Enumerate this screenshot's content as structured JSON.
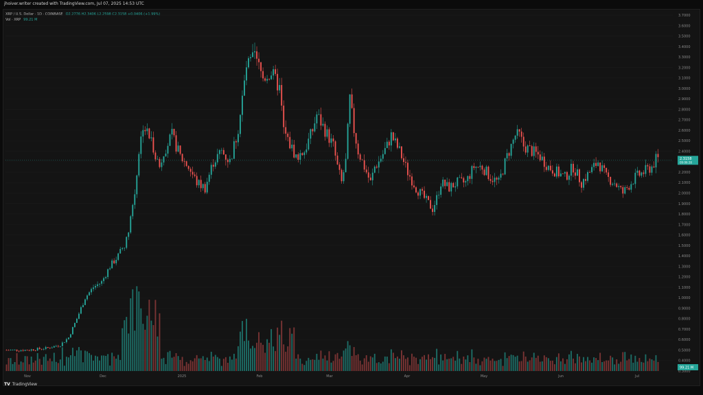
{
  "header": {
    "caption": "jhoiver.writer created with TradingView.com, Jul 07, 2025 14:53 UTC"
  },
  "legend": {
    "symbol_line": "XRP / U.S. Dollar · 1D · COINBASE",
    "ohlc_values": "O2.2776 H2.3406 L2.2598 C2.3158 +0.0406 (+1.99%)",
    "volume_line": "Vol · XRP",
    "volume_value": "99.21 M"
  },
  "price_tags": {
    "last_price": "2.3158",
    "countdown": "09:06:38",
    "last_volume": "99.21 M"
  },
  "footer": {
    "brand_mark": "TV",
    "brand_name": "TradingView"
  },
  "colors": {
    "up": "#26a69a",
    "down": "#ef5350",
    "up_vol": "#1e7e76",
    "down_vol": "#8c3a3a",
    "grid": "#1c1c1c",
    "background": "#141414"
  },
  "chart_data": {
    "type": "candlestick",
    "ylim": [
      0.3,
      3.7
    ],
    "y_ticks": [
      "3.7000",
      "3.6000",
      "3.5000",
      "3.4000",
      "3.3000",
      "3.2000",
      "3.1000",
      "3.0000",
      "2.9000",
      "2.8000",
      "2.7000",
      "2.6000",
      "2.5000",
      "2.4000",
      "2.3000",
      "2.2000",
      "2.1000",
      "2.0000",
      "1.9000",
      "1.8000",
      "1.7000",
      "1.6000",
      "1.5000",
      "1.4000",
      "1.3000",
      "1.2000",
      "1.1000",
      "1.0000",
      "0.9000",
      "0.8000",
      "0.7000",
      "0.6000",
      "0.5000",
      "0.4000",
      "0.3000"
    ],
    "x_ticks": [
      "Nov",
      "Dec",
      "2025",
      "Feb",
      "Mar",
      "Apr",
      "May",
      "Jun",
      "Jul"
    ],
    "close_anchors": [
      [
        0,
        0.5
      ],
      [
        10,
        0.5
      ],
      [
        20,
        0.52
      ],
      [
        26,
        0.55
      ],
      [
        30,
        0.62
      ],
      [
        34,
        0.8
      ],
      [
        38,
        1.0
      ],
      [
        42,
        1.1
      ],
      [
        46,
        1.15
      ],
      [
        50,
        1.3
      ],
      [
        54,
        1.4
      ],
      [
        58,
        1.55
      ],
      [
        62,
        2.0
      ],
      [
        64,
        2.4
      ],
      [
        66,
        2.65
      ],
      [
        70,
        2.5
      ],
      [
        74,
        2.25
      ],
      [
        76,
        2.4
      ],
      [
        80,
        2.55
      ],
      [
        84,
        2.35
      ],
      [
        88,
        2.25
      ],
      [
        92,
        2.1
      ],
      [
        96,
        2.05
      ],
      [
        100,
        2.3
      ],
      [
        104,
        2.4
      ],
      [
        108,
        2.3
      ],
      [
        112,
        2.6
      ],
      [
        116,
        3.2
      ],
      [
        120,
        3.3
      ],
      [
        124,
        3.1
      ],
      [
        128,
        3.15
      ],
      [
        132,
        3.0
      ],
      [
        134,
        2.6
      ],
      [
        136,
        2.5
      ],
      [
        140,
        2.35
      ],
      [
        144,
        2.4
      ],
      [
        148,
        2.6
      ],
      [
        150,
        2.75
      ],
      [
        154,
        2.6
      ],
      [
        158,
        2.45
      ],
      [
        160,
        2.25
      ],
      [
        162,
        2.1
      ],
      [
        164,
        2.3
      ],
      [
        166,
        2.9
      ],
      [
        168,
        2.6
      ],
      [
        170,
        2.4
      ],
      [
        174,
        2.2
      ],
      [
        176,
        2.1
      ],
      [
        178,
        2.25
      ],
      [
        180,
        2.3
      ],
      [
        184,
        2.45
      ],
      [
        186,
        2.55
      ],
      [
        190,
        2.4
      ],
      [
        194,
        2.2
      ],
      [
        198,
        2.05
      ],
      [
        202,
        1.95
      ],
      [
        206,
        1.85
      ],
      [
        208,
        1.95
      ],
      [
        210,
        2.1
      ],
      [
        214,
        2.05
      ],
      [
        218,
        2.1
      ],
      [
        222,
        2.1
      ],
      [
        226,
        2.25
      ],
      [
        230,
        2.25
      ],
      [
        234,
        2.15
      ],
      [
        238,
        2.1
      ],
      [
        242,
        2.35
      ],
      [
        246,
        2.55
      ],
      [
        248,
        2.55
      ],
      [
        250,
        2.45
      ],
      [
        254,
        2.4
      ],
      [
        258,
        2.35
      ],
      [
        262,
        2.25
      ],
      [
        266,
        2.2
      ],
      [
        270,
        2.15
      ],
      [
        274,
        2.25
      ],
      [
        278,
        2.1
      ],
      [
        282,
        2.2
      ],
      [
        286,
        2.3
      ],
      [
        290,
        2.15
      ],
      [
        294,
        2.1
      ],
      [
        298,
        2.0
      ],
      [
        300,
        2.05
      ],
      [
        304,
        2.15
      ],
      [
        308,
        2.2
      ],
      [
        312,
        2.25
      ],
      [
        314,
        2.32
      ]
    ],
    "candle_count": 316,
    "volume_unit": "relative"
  }
}
